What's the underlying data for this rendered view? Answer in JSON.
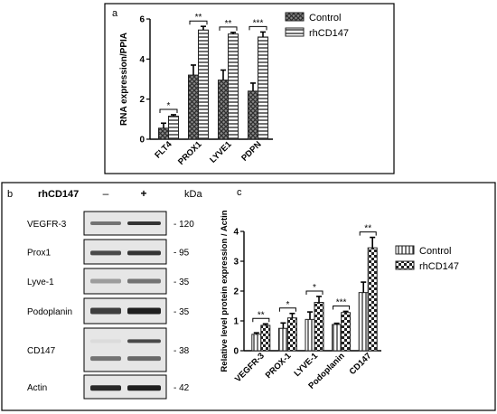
{
  "panel_a": {
    "label": "a",
    "chart_data": {
      "type": "bar",
      "title": "",
      "ylabel": "RNA expression/PPIA",
      "xlabel": "",
      "ylim": [
        0,
        6
      ],
      "yticks": [
        "0",
        "2",
        "4",
        "6"
      ],
      "categories": [
        "FLT4",
        "PROX1",
        "LYVE1",
        "PDPN"
      ],
      "series": [
        {
          "name": "Control",
          "pattern": "crosshatch",
          "values": [
            0.55,
            3.2,
            2.95,
            2.4
          ],
          "errors": [
            0.25,
            0.5,
            0.5,
            0.4
          ]
        },
        {
          "name": "rhCD147",
          "pattern": "horizontal-lines",
          "values": [
            1.15,
            5.45,
            5.25,
            5.1
          ],
          "errors": [
            0.07,
            0.18,
            0.08,
            0.25
          ]
        }
      ],
      "significance": [
        "*",
        "**",
        "**",
        "***"
      ],
      "legend_position": "right",
      "grid": false
    }
  },
  "panel_b": {
    "label": "b",
    "treatment_label": "rhCD147",
    "lane_labels": [
      "–",
      "+"
    ],
    "kda_label": "kDa",
    "blots": [
      {
        "protein": "VEGFR-3",
        "kda": "- 120"
      },
      {
        "protein": "Prox1",
        "kda": "- 95"
      },
      {
        "protein": "Lyve-1",
        "kda": "- 35"
      },
      {
        "protein": "Podoplanin",
        "kda": "- 35"
      },
      {
        "protein": "CD147",
        "kda": "- 38"
      },
      {
        "protein": "Actin",
        "kda": "- 42"
      }
    ]
  },
  "panel_c": {
    "label": "c",
    "chart_data": {
      "type": "bar",
      "title": "",
      "ylabel": "Relative level protein expression / Actin",
      "xlabel": "",
      "ylim": [
        0,
        4
      ],
      "yticks": [
        "0",
        "1",
        "2",
        "3",
        "4"
      ],
      "categories": [
        "VEGFR-3",
        "PROX-1",
        "LYVE-1",
        "Podoplanin",
        "CD147"
      ],
      "series": [
        {
          "name": "Control",
          "pattern": "vertical-lines",
          "values": [
            0.55,
            0.75,
            1.05,
            0.88,
            1.95
          ],
          "errors": [
            0.05,
            0.18,
            0.25,
            0.04,
            0.35
          ]
        },
        {
          "name": "rhCD147",
          "pattern": "checker",
          "values": [
            0.85,
            1.1,
            1.62,
            1.28,
            3.45
          ],
          "errors": [
            0.05,
            0.15,
            0.2,
            0.04,
            0.35
          ]
        }
      ],
      "significance": [
        "**",
        "*",
        "*",
        "***",
        "**"
      ],
      "legend_position": "right",
      "grid": false
    }
  }
}
